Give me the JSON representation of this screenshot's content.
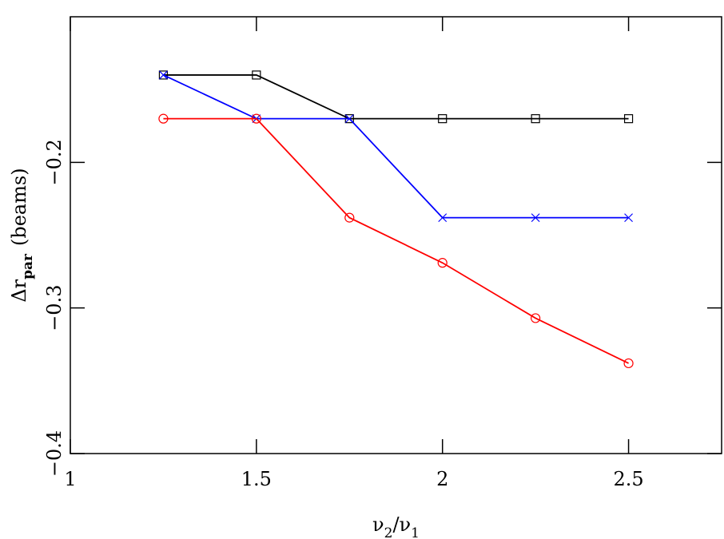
{
  "chart_data": {
    "type": "line",
    "x_label": [
      "ν",
      "2",
      "/ν",
      "1"
    ],
    "y_label": [
      "Δr",
      "par",
      "(beams)"
    ],
    "x": [
      1.25,
      1.5,
      1.75,
      2,
      2.25,
      2.5
    ],
    "series": [
      {
        "color": "#000000",
        "marker": "square",
        "values": [
          -0.14,
          -0.14,
          -0.17,
          -0.17,
          -0.17,
          -0.17
        ]
      },
      {
        "color": "#0000ff",
        "marker": "cross",
        "values": [
          -0.14,
          -0.17,
          -0.17,
          -0.238,
          -0.238,
          -0.238
        ]
      },
      {
        "color": "#ff0000",
        "marker": "circle",
        "values": [
          -0.17,
          -0.17,
          -0.238,
          -0.269,
          -0.307,
          -0.338
        ]
      }
    ],
    "xlim": [
      1,
      2.75
    ],
    "xticks": [
      1,
      1.5,
      2,
      2.5
    ],
    "ylim": [
      -0.4,
      -0.1
    ],
    "yticks": [
      {
        "value": -0.4,
        "label": "−0.4"
      },
      {
        "value": -0.3,
        "label": "−0.3"
      },
      {
        "value": -0.2,
        "label": "−0.2"
      }
    ]
  }
}
